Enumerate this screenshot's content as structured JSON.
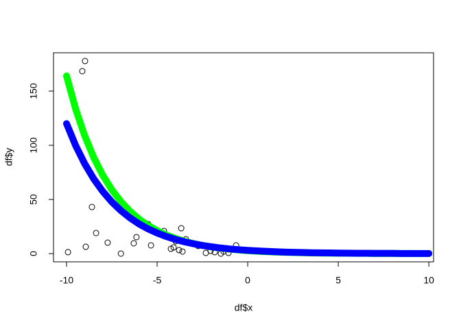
{
  "chart_data": {
    "type": "scatter",
    "x_label": "df$x",
    "y_label": "df$y",
    "xlim": [
      -10.72,
      10.26
    ],
    "ylim": [
      -7.6,
      185.4
    ],
    "xticks": [
      -10,
      -5,
      0,
      5,
      10
    ],
    "yticks": [
      0,
      50,
      100,
      150
    ],
    "series": [
      {
        "type": "scatter",
        "color": "#000000",
        "x": [
          -8.98,
          -9.13,
          -9.92,
          -8.6,
          -8.37,
          -8.94,
          -7.73,
          -7.0,
          -6.63,
          -6.36,
          -6.21,
          -6.29,
          -6.14,
          -5.49,
          -5.34,
          -4.62,
          -4.24,
          -4.09,
          -3.98,
          -3.79,
          -3.67,
          -3.6,
          -3.41,
          -2.73,
          -2.31,
          -2.05,
          -2.01,
          -1.82,
          -1.48,
          -1.33,
          -1.06,
          -0.64
        ],
        "values": [
          177.8,
          168.4,
          1.3,
          43,
          19,
          6.3,
          10.1,
          0,
          39.9,
          33.5,
          33.5,
          9.5,
          15.2,
          27.2,
          7.6,
          20.9,
          4.4,
          5.7,
          11.4,
          3.2,
          23.4,
          1.9,
          13.3,
          7,
          0.6,
          2.5,
          6.3,
          1.3,
          0,
          1.9,
          0.6,
          7.6
        ]
      },
      {
        "type": "line",
        "color": "#00ff00",
        "x": [
          -10,
          -9.5,
          -9,
          -8.5,
          -8,
          -7.5,
          -7,
          -6.5,
          -6,
          -5.5,
          -5,
          -4.5,
          -4,
          -3.5,
          -3,
          -2.5,
          -2,
          -1.5,
          -1,
          -0.5,
          0,
          0.5,
          1,
          1.5,
          2,
          2.5,
          3,
          3.5,
          4,
          4.5,
          5,
          5.5,
          6,
          6.5,
          7,
          7.5,
          8,
          8.5,
          9,
          9.5,
          10
        ],
        "values": [
          164,
          133.6,
          108.9,
          88.7,
          72.3,
          58.9,
          48.0,
          39.1,
          31.9,
          26.0,
          21.2,
          17.2,
          14.1,
          11.4,
          9.3,
          7.6,
          6.2,
          5.0,
          4.1,
          3.4,
          2.7,
          2.2,
          1.8,
          1.5,
          1.2,
          1.0,
          0.8,
          0.6,
          0.5,
          0.4,
          0.3,
          0.3,
          0.2,
          0.2,
          0.1,
          0.1,
          0.1,
          0.1,
          0.1,
          0.0,
          0.0
        ]
      },
      {
        "type": "line",
        "color": "#0000ff",
        "x": [
          -10,
          -9.5,
          -9,
          -8.5,
          -8,
          -7.5,
          -7,
          -6.5,
          -6,
          -5.5,
          -5,
          -4.5,
          -4,
          -3.5,
          -3,
          -2.5,
          -2,
          -1.5,
          -1,
          -0.5,
          0,
          0.5,
          1,
          1.5,
          2,
          2.5,
          3,
          3.5,
          4,
          4.5,
          5,
          5.5,
          6,
          6.5,
          7,
          7.5,
          8,
          8.5,
          9,
          9.5,
          10
        ],
        "values": [
          120,
          99.8,
          83.0,
          69.0,
          57.4,
          47.7,
          39.7,
          33.0,
          27.4,
          22.8,
          19.0,
          15.8,
          13.1,
          10.9,
          9.1,
          7.5,
          6.3,
          5.2,
          4.3,
          3.6,
          3.0,
          2.5,
          2.1,
          1.7,
          1.4,
          1.2,
          1.0,
          0.8,
          0.7,
          0.6,
          0.5,
          0.4,
          0.3,
          0.3,
          0.2,
          0.2,
          0.2,
          0.1,
          0.1,
          0.1,
          0.1
        ]
      }
    ]
  }
}
